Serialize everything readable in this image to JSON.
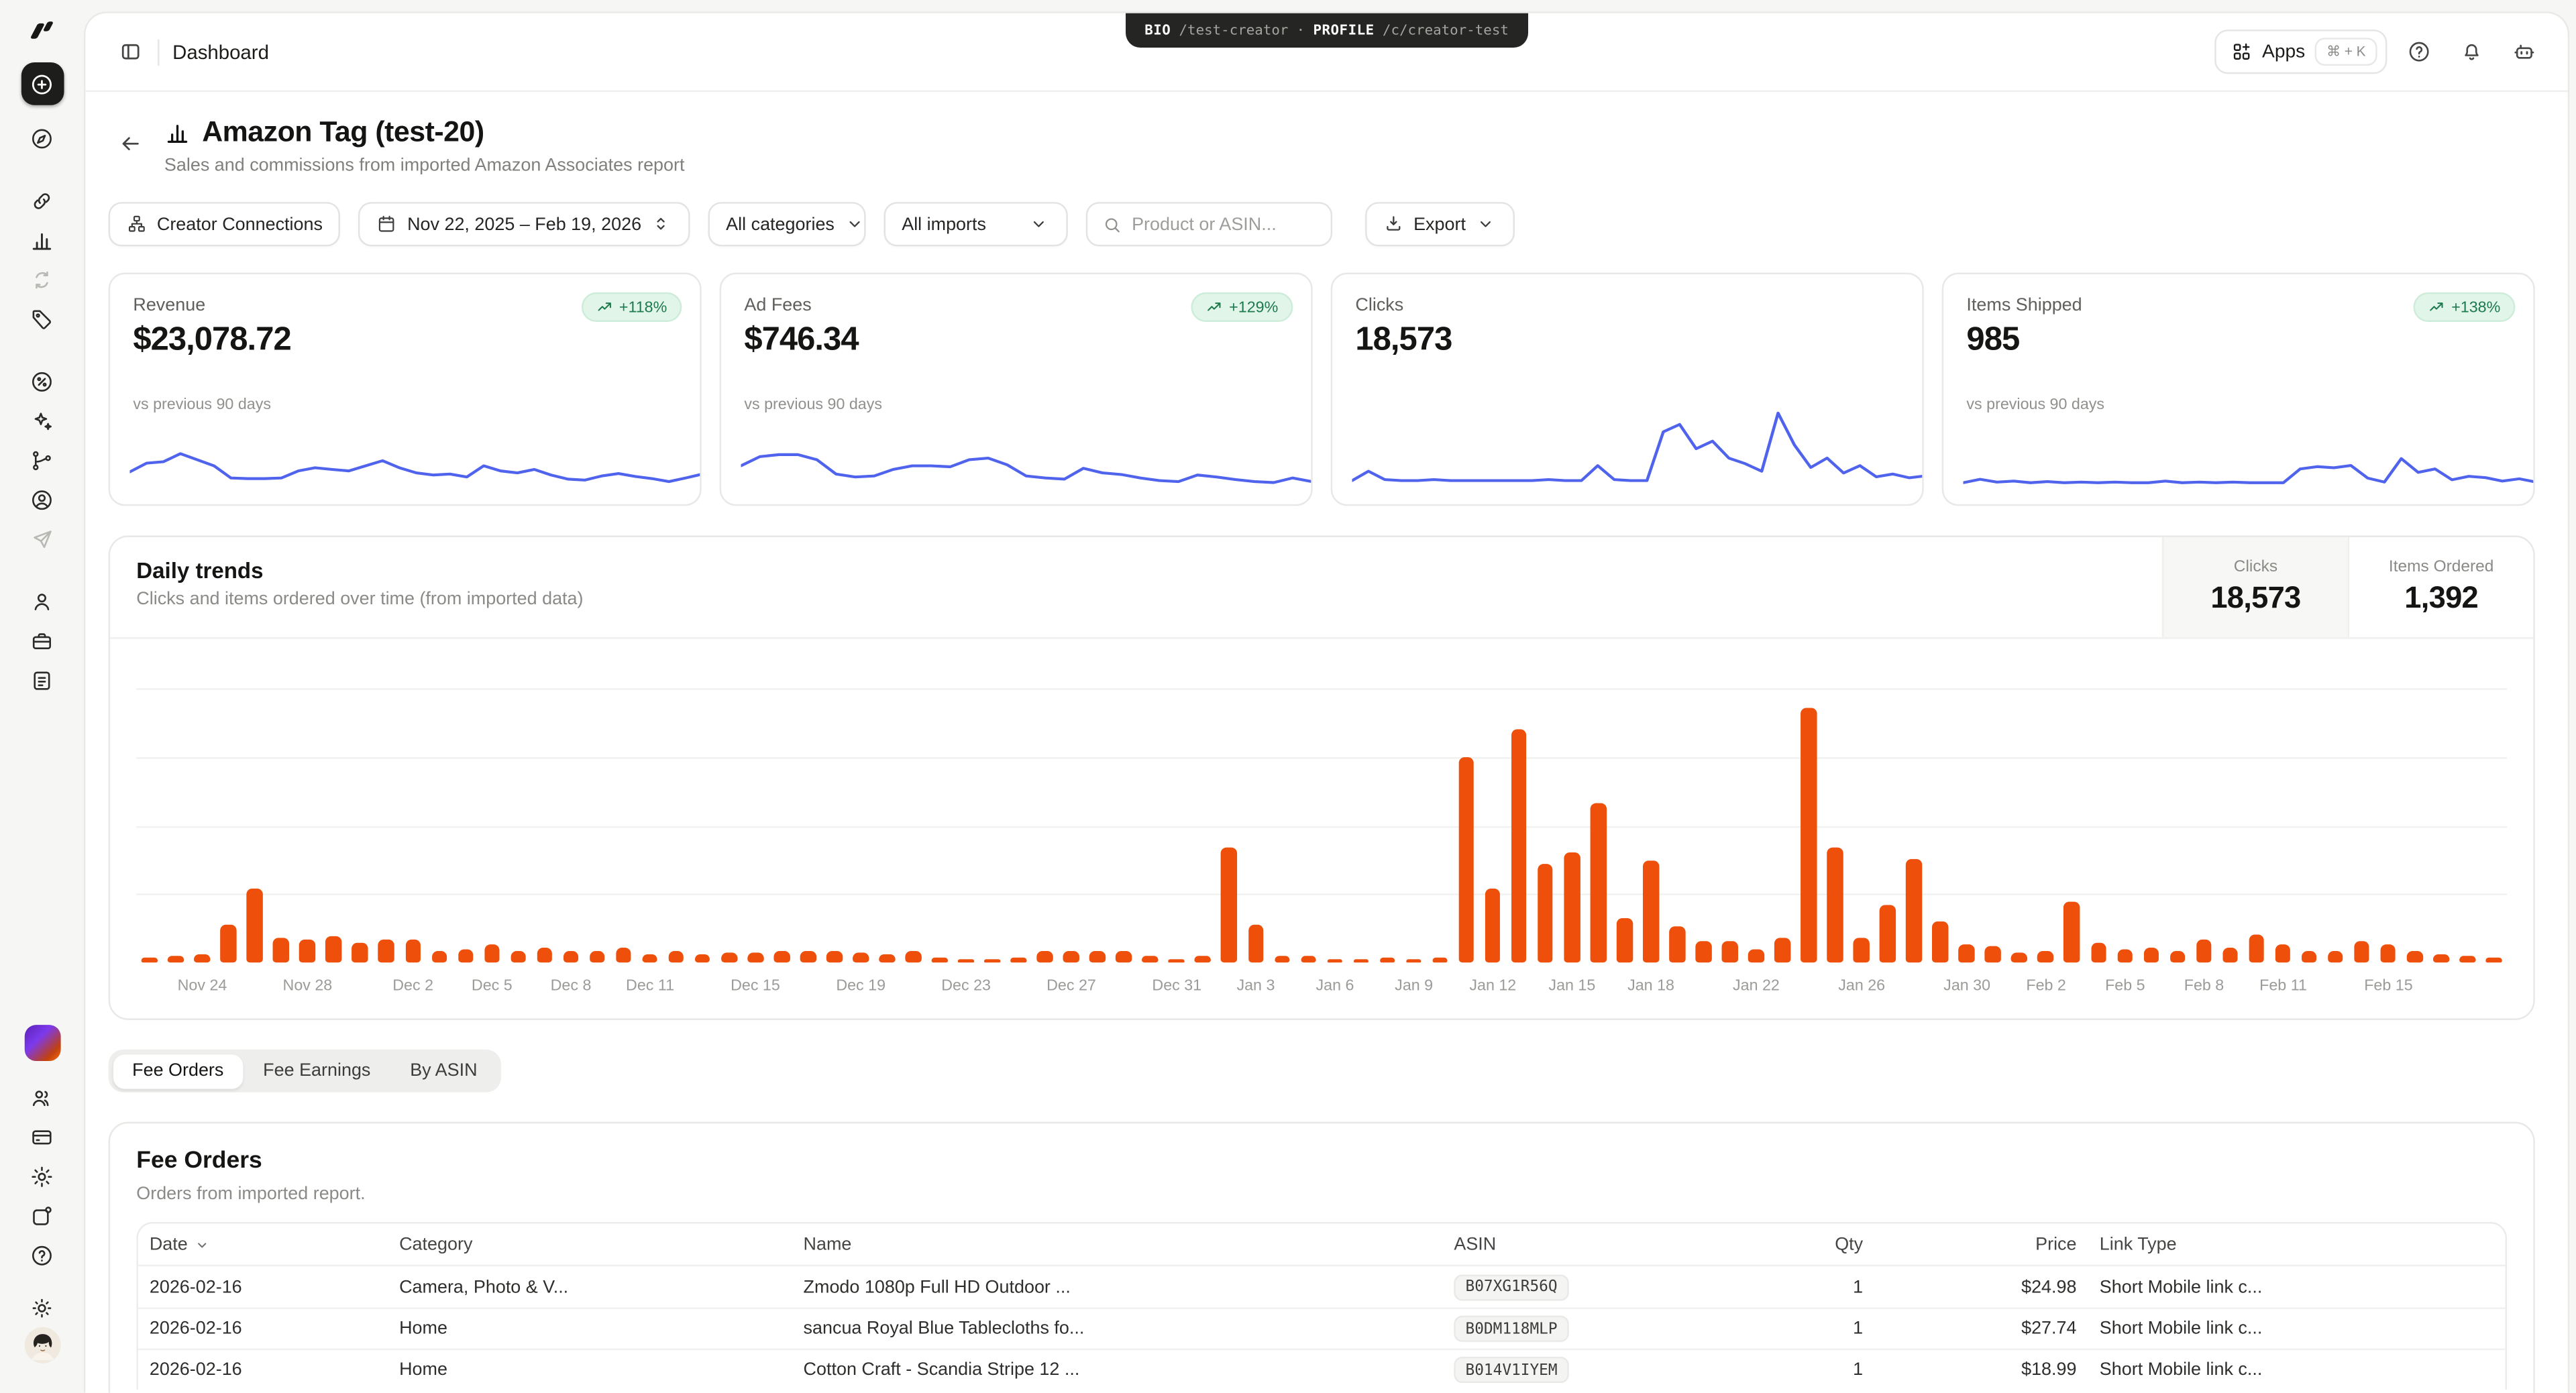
{
  "topbar": {
    "breadcrumb": "Dashboard",
    "pill": {
      "bio_label": "BIO",
      "bio_path": "/test-creator",
      "separator": "·",
      "profile_label": "PROFILE",
      "profile_path": "/c/creator-test"
    },
    "apps_label": "Apps",
    "apps_shortcut": "⌘ + K"
  },
  "sidebar": {
    "top_groups": [
      [
        "compass"
      ],
      [
        "link",
        "chart-columns",
        "ab-test",
        "tag"
      ],
      [
        "percent-badge",
        "sparkles",
        "flow",
        "user-circle",
        "paper-plane"
      ],
      [
        "person",
        "briefcase",
        "file-text"
      ]
    ],
    "muted": [
      "ab-test",
      "paper-plane"
    ],
    "bottom_groups": [
      [
        "workspace",
        "users",
        "credit-card",
        "gear",
        "share",
        "help"
      ],
      [
        "sun",
        "avatar"
      ]
    ]
  },
  "header": {
    "title": "Amazon Tag (test-20)",
    "subtitle": "Sales and commissions from imported Amazon Associates report"
  },
  "filters": {
    "creator_connections": "Creator Connections",
    "date_range": "Nov 22, 2025 – Feb 19, 2026",
    "categories": "All categories",
    "imports": "All imports",
    "search_placeholder": "Product or ASIN...",
    "export_label": "Export"
  },
  "kpis": [
    {
      "label": "Revenue",
      "value": "$23,078.72",
      "badge": "+118%",
      "compare": "vs previous 90 days",
      "spark_height": 36,
      "sparkline": [
        28,
        45,
        48,
        64,
        52,
        40,
        16,
        15,
        15,
        16,
        30,
        36,
        33,
        30,
        40,
        50,
        36,
        26,
        22,
        24,
        18,
        40,
        30,
        26,
        33,
        22,
        14,
        12,
        20,
        25,
        19,
        15,
        9,
        16,
        24,
        12
      ]
    },
    {
      "label": "Ad Fees",
      "value": "$746.34",
      "badge": "+129%",
      "compare": "vs previous 90 days",
      "spark_height": 36,
      "sparkline": [
        40,
        58,
        62,
        62,
        52,
        24,
        18,
        20,
        33,
        40,
        40,
        38,
        52,
        55,
        42,
        20,
        16,
        14,
        35,
        26,
        23,
        16,
        11,
        9,
        22,
        18,
        13,
        9,
        7,
        16,
        9,
        12
      ]
    },
    {
      "label": "Clicks",
      "value": "18,573",
      "badge": null,
      "compare": null,
      "spark_height": 62,
      "sparkline": [
        6,
        16,
        7,
        6,
        6,
        7,
        6,
        6,
        6,
        6,
        6,
        6,
        7,
        6,
        6,
        22,
        7,
        6,
        6,
        58,
        66,
        40,
        48,
        30,
        24,
        16,
        78,
        44,
        20,
        30,
        14,
        22,
        10,
        13,
        9,
        11,
        8
      ]
    },
    {
      "label": "Items Shipped",
      "value": "985",
      "badge": "+138%",
      "compare": "vs previous 90 days",
      "spark_height": 40,
      "sparkline": [
        6,
        12,
        7,
        9,
        6,
        8,
        6,
        7,
        6,
        7,
        6,
        6,
        9,
        6,
        7,
        6,
        7,
        6,
        6,
        6,
        30,
        34,
        32,
        36,
        14,
        7,
        48,
        24,
        30,
        11,
        17,
        15,
        9,
        13,
        7,
        7
      ]
    }
  ],
  "daily_trends": {
    "title": "Daily trends",
    "subtitle": "Clicks and items ordered over time (from imported data)",
    "stats": [
      {
        "label": "Clicks",
        "value": "18,573",
        "active": true
      },
      {
        "label": "Items Ordered",
        "value": "1,392",
        "active": false
      }
    ]
  },
  "chart_data": {
    "type": "bar",
    "title": "Daily trends",
    "xlabel": "date",
    "ylabel": "items ordered per day (y-axis unlabeled; values are % of max bar)",
    "x_range": [
      "Nov 22, 2025",
      "Feb 19, 2026"
    ],
    "grid": true,
    "bar_color": "#ee500b",
    "values": [
      2,
      2.5,
      3,
      14,
      27,
      9,
      8.5,
      9.5,
      7.5,
      8.5,
      8.5,
      4,
      5,
      6.5,
      4.5,
      5.5,
      4,
      4.5,
      5.5,
      3,
      4,
      3,
      3.5,
      3.5,
      4,
      4.5,
      4.5,
      3.5,
      3,
      4,
      2,
      1.5,
      1,
      2,
      4,
      4,
      4.5,
      4,
      2.5,
      1,
      2.5,
      42,
      14,
      2.5,
      2.5,
      1.5,
      1,
      2,
      1.2,
      2,
      75,
      27,
      85,
      36,
      40,
      58,
      16,
      37,
      13,
      8,
      8,
      5,
      9,
      93,
      42,
      9,
      21,
      38,
      15,
      6.5,
      6,
      3.5,
      4.5,
      22,
      7.5,
      5,
      5.5,
      4,
      8.5,
      5.5,
      10,
      6.5,
      4,
      4.5,
      8,
      6.5,
      4,
      3,
      2.5,
      2
    ],
    "x_tick_labels": [
      {
        "label": "Nov 24",
        "day": 2
      },
      {
        "label": "Nov 28",
        "day": 6
      },
      {
        "label": "Dec 2",
        "day": 10
      },
      {
        "label": "Dec 5",
        "day": 13
      },
      {
        "label": "Dec 8",
        "day": 16
      },
      {
        "label": "Dec 11",
        "day": 19
      },
      {
        "label": "Dec 15",
        "day": 23
      },
      {
        "label": "Dec 19",
        "day": 27
      },
      {
        "label": "Dec 23",
        "day": 31
      },
      {
        "label": "Dec 27",
        "day": 35
      },
      {
        "label": "Dec 31",
        "day": 39
      },
      {
        "label": "Jan 3",
        "day": 42
      },
      {
        "label": "Jan 6",
        "day": 45
      },
      {
        "label": "Jan 9",
        "day": 48
      },
      {
        "label": "Jan 12",
        "day": 51
      },
      {
        "label": "Jan 15",
        "day": 54
      },
      {
        "label": "Jan 18",
        "day": 57
      },
      {
        "label": "Jan 22",
        "day": 61
      },
      {
        "label": "Jan 26",
        "day": 65
      },
      {
        "label": "Jan 30",
        "day": 69
      },
      {
        "label": "Feb 2",
        "day": 72
      },
      {
        "label": "Feb 5",
        "day": 75
      },
      {
        "label": "Feb 8",
        "day": 78
      },
      {
        "label": "Feb 11",
        "day": 81
      },
      {
        "label": "Feb 15",
        "day": 85
      }
    ]
  },
  "tabs": {
    "items": [
      "Fee Orders",
      "Fee Earnings",
      "By ASIN"
    ],
    "active_index": 0
  },
  "orders": {
    "title": "Fee Orders",
    "subtitle": "Orders from imported report.",
    "columns": [
      "Date",
      "Category",
      "Name",
      "ASIN",
      "Qty",
      "Price",
      "Link Type"
    ],
    "rows": [
      [
        "2026-02-16",
        "Camera, Photo & V...",
        "Zmodo 1080p Full HD Outdoor ...",
        "B07XG1R56Q",
        "1",
        "$24.98",
        "Short Mobile link c..."
      ],
      [
        "2026-02-16",
        "Home",
        "sancua Royal Blue Tablecloths fo...",
        "B0DM118MLP",
        "1",
        "$27.74",
        "Short Mobile link c..."
      ],
      [
        "2026-02-16",
        "Home",
        "Cotton Craft - Scandia Stripe 12 ...",
        "B014V1IYEM",
        "1",
        "$18.99",
        "Short Mobile link c..."
      ]
    ]
  },
  "colors": {
    "bar_orange": "#ee500b",
    "spark_blue": "#4f63ec",
    "badge_green_bg": "#e1f5e9",
    "badge_green_text": "#1d7a4c",
    "page_bg": "#f6f6f4"
  }
}
